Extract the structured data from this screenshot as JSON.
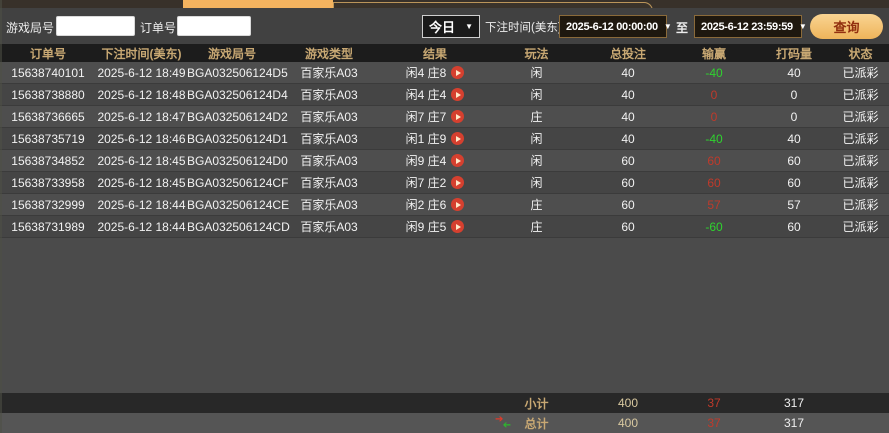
{
  "filters": {
    "game_round_label": "游戏局号",
    "order_no_label": "订单号",
    "game_round_value": "",
    "order_no_value": "",
    "period_select": "今日",
    "bet_time_label": "下注时间(美东)",
    "start_time": "2025-6-12 00:00:00",
    "to_label": "至",
    "end_time": "2025-6-12 23:59:59",
    "query_button": "查询"
  },
  "table": {
    "headers": [
      "订单号",
      "下注时间(美东)",
      "游戏局号",
      "游戏类型",
      "结果",
      "玩法",
      "总投注",
      "输赢",
      "打码量",
      "状态"
    ],
    "rows": [
      {
        "order_no": "15638740101",
        "bet_time": "2025-6-12 18:49",
        "round": "BGA032506124D5",
        "game_type": "百家乐A03",
        "result": "闲4 庄8",
        "play": "闲",
        "total_bet": "40",
        "win_loss": "-40",
        "win_loss_color": "green",
        "turnover": "40",
        "status": "已派彩"
      },
      {
        "order_no": "15638738880",
        "bet_time": "2025-6-12 18:48",
        "round": "BGA032506124D4",
        "game_type": "百家乐A03",
        "result": "闲4 庄4",
        "play": "闲",
        "total_bet": "40",
        "win_loss": "0",
        "win_loss_color": "red",
        "turnover": "0",
        "status": "已派彩"
      },
      {
        "order_no": "15638736665",
        "bet_time": "2025-6-12 18:47",
        "round": "BGA032506124D2",
        "game_type": "百家乐A03",
        "result": "闲7 庄7",
        "play": "庄",
        "total_bet": "40",
        "win_loss": "0",
        "win_loss_color": "red",
        "turnover": "0",
        "status": "已派彩"
      },
      {
        "order_no": "15638735719",
        "bet_time": "2025-6-12 18:46",
        "round": "BGA032506124D1",
        "game_type": "百家乐A03",
        "result": "闲1 庄9",
        "play": "闲",
        "total_bet": "40",
        "win_loss": "-40",
        "win_loss_color": "green",
        "turnover": "40",
        "status": "已派彩"
      },
      {
        "order_no": "15638734852",
        "bet_time": "2025-6-12 18:45",
        "round": "BGA032506124D0",
        "game_type": "百家乐A03",
        "result": "闲9 庄4",
        "play": "闲",
        "total_bet": "60",
        "win_loss": "60",
        "win_loss_color": "red",
        "turnover": "60",
        "status": "已派彩"
      },
      {
        "order_no": "15638733958",
        "bet_time": "2025-6-12 18:45",
        "round": "BGA032506124CF",
        "game_type": "百家乐A03",
        "result": "闲7 庄2",
        "play": "闲",
        "total_bet": "60",
        "win_loss": "60",
        "win_loss_color": "red",
        "turnover": "60",
        "status": "已派彩"
      },
      {
        "order_no": "15638732999",
        "bet_time": "2025-6-12 18:44",
        "round": "BGA032506124CE",
        "game_type": "百家乐A03",
        "result": "闲2 庄6",
        "play": "庄",
        "total_bet": "60",
        "win_loss": "57",
        "win_loss_color": "red",
        "turnover": "57",
        "status": "已派彩"
      },
      {
        "order_no": "15638731989",
        "bet_time": "2025-6-12 18:44",
        "round": "BGA032506124CD",
        "game_type": "百家乐A03",
        "result": "闲9 庄5",
        "play": "庄",
        "total_bet": "60",
        "win_loss": "-60",
        "win_loss_color": "green",
        "turnover": "60",
        "status": "已派彩"
      }
    ],
    "subtotal": {
      "label": "小计",
      "total_bet": "400",
      "win_loss": "37",
      "turnover": "317"
    },
    "total": {
      "label": "总计",
      "total_bet": "400",
      "win_loss": "37",
      "turnover": "317"
    }
  },
  "icons": {
    "play_result_icon": "play-circle",
    "swap_icon": "red-green-swap-arrows",
    "dropdown_arrow": "▼"
  },
  "colors": {
    "active_tab": "#f4b35f",
    "tab_border": "#bb955a",
    "header_bg": "#1c1c1c",
    "header_text": "#c8a873",
    "win_positive": "#bf3a2b",
    "win_negative": "#2fd32f",
    "query_button": "#eeb45a",
    "query_text": "#92300f",
    "row_odd": "#4e4e4e",
    "row_even": "#454545"
  }
}
